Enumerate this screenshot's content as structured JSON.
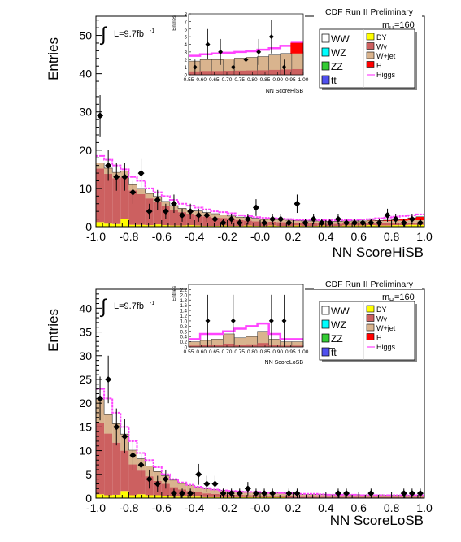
{
  "chart_data": [
    {
      "type": "bar",
      "xlabel": "NN ScoreHiSB",
      "ylabel": "Entries",
      "xlim": [
        -1.0,
        1.0
      ],
      "ylim": [
        0,
        55
      ],
      "x_ticks": [
        "-1.0",
        "-0.8",
        "-0.6",
        "-0.4",
        "-0.2",
        "-0.0",
        "0.2",
        "0.4",
        "0.6",
        "0.8",
        "1.0"
      ],
      "y_ticks": [
        "0",
        "10",
        "20",
        "30",
        "40",
        "50"
      ],
      "header": "CDF Run II Preliminary",
      "lumi": "L=9.7fb",
      "lumi_sup": "-1",
      "mass_label": "m",
      "mass_sub": "H",
      "mass_value": "=160",
      "bins": 40,
      "series": [
        {
          "name": "DY",
          "values": [
            1.2,
            0.8,
            0.7,
            2.0,
            0.5,
            0.5,
            0.4,
            0.6,
            0.4,
            0.3,
            0.3,
            0.4,
            0.3,
            0.2,
            0.2,
            0.3,
            0.2,
            0.2,
            0.3,
            0.2,
            0.2,
            0.3,
            0.2,
            0.2,
            0.3,
            0.2,
            0.2,
            0.3,
            0.2,
            0.2,
            0.3,
            0.3,
            0.3,
            0.4,
            0.3,
            0.3,
            0.4,
            0.4,
            0.5,
            0.5
          ]
        },
        {
          "name": "Wγ",
          "values": [
            14,
            13,
            12,
            11,
            9,
            8,
            7,
            6,
            5,
            4,
            3.5,
            3,
            2.8,
            2.5,
            2.2,
            2,
            1.8,
            1.5,
            1.3,
            1.2,
            1,
            1,
            1,
            0.8,
            0.7,
            0.7,
            0.7,
            0.6,
            0.6,
            0.6,
            0.6,
            0.6,
            0.6,
            0.6,
            0.6,
            0.6,
            0.6,
            0.6,
            0.6,
            0.6
          ]
        },
        {
          "name": "W+jet",
          "values": [
            1.5,
            1.5,
            1.5,
            1.5,
            1.5,
            1.5,
            1.3,
            1.3,
            1.2,
            1.2,
            1,
            1,
            1,
            1,
            1,
            0.8,
            0.8,
            0.8,
            0.8,
            0.8,
            0.7,
            0.7,
            0.7,
            0.7,
            0.6,
            0.6,
            0.6,
            0.6,
            0.6,
            0.6,
            0.6,
            0.6,
            0.6,
            0.6,
            0.6,
            0.6,
            0.6,
            0.6,
            0.6,
            0.6
          ]
        },
        {
          "name": "H",
          "values": [
            0,
            0,
            0,
            0,
            0,
            0,
            0,
            0,
            0,
            0,
            0,
            0,
            0,
            0,
            0,
            0,
            0,
            0,
            0,
            0,
            0,
            0,
            0,
            0,
            0,
            0,
            0,
            0,
            0,
            0,
            0,
            0,
            0,
            0.1,
            0.1,
            0.2,
            0.2,
            0.4,
            0.6,
            0.9
          ]
        }
      ],
      "signal_line": [
        18.5,
        17.5,
        16,
        15,
        13,
        12,
        10,
        9,
        8,
        7,
        6,
        5.5,
        5,
        4.5,
        4,
        3.8,
        3.5,
        3,
        2.8,
        2.5,
        2.3,
        2.2,
        2.1,
        2,
        1.8,
        1.8,
        1.8,
        1.7,
        1.7,
        1.7,
        1.7,
        1.8,
        1.9,
        2,
        2.2,
        2.4,
        2.6,
        2.8,
        3,
        3.2
      ],
      "points": {
        "x": [
          -0.975,
          -0.925,
          -0.875,
          -0.825,
          -0.775,
          -0.725,
          -0.675,
          -0.625,
          -0.575,
          -0.525,
          -0.475,
          -0.425,
          -0.375,
          -0.325,
          -0.275,
          -0.225,
          -0.175,
          -0.125,
          -0.075,
          -0.025,
          0.025,
          0.075,
          0.125,
          0.175,
          0.225,
          0.275,
          0.325,
          0.375,
          0.425,
          0.475,
          0.525,
          0.575,
          0.625,
          0.675,
          0.725,
          0.775,
          0.825,
          0.875,
          0.925,
          0.975
        ],
        "y": [
          29,
          16,
          13,
          13,
          9,
          14,
          4,
          7,
          4,
          6,
          3,
          4,
          3,
          3,
          2,
          1,
          2,
          1,
          2,
          5,
          1,
          2,
          2,
          1,
          6,
          1,
          2,
          1,
          1,
          2,
          1,
          1,
          1,
          1,
          1,
          3,
          2,
          1,
          2,
          1
        ],
        "err": [
          5.4,
          4,
          3.6,
          3.6,
          3,
          3.7,
          2,
          2.6,
          2,
          2.4,
          1.7,
          2,
          1.7,
          1.7,
          1.4,
          1,
          1.4,
          1,
          1.4,
          2.2,
          1,
          1.4,
          1.4,
          1,
          2.4,
          1,
          1.4,
          1,
          1,
          1.4,
          1,
          1,
          1,
          1,
          1,
          1.7,
          1.4,
          1,
          1.4,
          1
        ]
      },
      "legend_left": [
        "WW",
        "WZ",
        "ZZ",
        "t̅t"
      ],
      "legend_right": [
        "DY",
        "Wγ",
        "W+jet",
        "H",
        "Higgs"
      ],
      "inset": {
        "xlabel": "NN ScoreHiSB",
        "ylabel": "Entries",
        "xlim": [
          0.55,
          1.0
        ],
        "ylim": [
          0,
          8
        ],
        "x_ticks": [
          "0.55",
          "0.60",
          "0.65",
          "0.70",
          "0.75",
          "0.80",
          "0.85",
          "0.90",
          "0.95",
          "1.00"
        ],
        "y_ticks": [
          "0",
          "1",
          "2",
          "3",
          "4",
          "5",
          "6",
          "7",
          "8"
        ],
        "stack": [
          1.8,
          2.0,
          2.0,
          2.1,
          2.2,
          2.3,
          2.4,
          2.6,
          2.8,
          3.0
        ],
        "signal": [
          2.5,
          2.7,
          2.8,
          2.9,
          3.0,
          3.1,
          3.3,
          3.5,
          3.8,
          4.2
        ],
        "points": {
          "x": [
            0.575,
            0.625,
            0.675,
            0.725,
            0.775,
            0.825,
            0.875,
            0.925
          ],
          "y": [
            1,
            4,
            3,
            1,
            2,
            3,
            5,
            1
          ],
          "err": [
            1,
            2,
            1.7,
            1,
            1.4,
            1.7,
            2.2,
            1
          ]
        }
      }
    },
    {
      "type": "bar",
      "xlabel": "NN ScoreLoSB",
      "ylabel": "Entries",
      "xlim": [
        -1.0,
        1.0
      ],
      "ylim": [
        0,
        44
      ],
      "x_ticks": [
        "-1.0",
        "-0.8",
        "-0.6",
        "-0.4",
        "-0.2",
        "-0.0",
        "0.2",
        "0.4",
        "0.6",
        "0.8",
        "1.0"
      ],
      "y_ticks": [
        "0",
        "5",
        "10",
        "15",
        "20",
        "25",
        "30",
        "35",
        "40"
      ],
      "header": "CDF Run II Preliminary",
      "lumi": "L=9.7fb",
      "lumi_sup": "-1",
      "mass_label": "m",
      "mass_sub": "H",
      "mass_value": "=160",
      "bins": 40,
      "series": [
        {
          "name": "DY",
          "values": [
            0.8,
            0.6,
            0.7,
            1.5,
            0.6,
            0.8,
            0.6,
            0.6,
            0.5,
            0.3,
            0.3,
            0.3,
            0.3,
            0.2,
            0.2,
            0.2,
            0.2,
            0.2,
            0.2,
            0.2,
            0.2,
            0.2,
            0.2,
            0.1,
            0.1,
            0.1,
            0.1,
            0.1,
            0.1,
            0.1,
            0.1,
            0.1,
            0.1,
            0.1,
            0.1,
            0.1,
            0.1,
            0.1,
            0.1,
            0.1
          ]
        },
        {
          "name": "Wγ",
          "values": [
            15,
            13,
            11,
            8.5,
            6.5,
            5,
            4,
            3,
            2.5,
            2,
            1.5,
            1.2,
            1,
            0.8,
            0.7,
            0.6,
            0.5,
            0.5,
            0.4,
            0.4,
            0.3,
            0.3,
            0.3,
            0.3,
            0.2,
            0.2,
            0.2,
            0.2,
            0.2,
            0.2,
            0.2,
            0.2,
            0.2,
            0.2,
            0.2,
            0.2,
            0.2,
            0.2,
            0.2,
            0.2
          ]
        },
        {
          "name": "W+jet",
          "values": [
            5,
            4,
            4,
            3.5,
            3,
            2.5,
            2.2,
            2,
            1.7,
            1.5,
            1.3,
            1.2,
            1,
            1,
            0.9,
            0.8,
            0.8,
            0.7,
            0.7,
            0.7,
            0.6,
            0.6,
            0.6,
            0.5,
            0.5,
            0.5,
            0.5,
            0.5,
            0.4,
            0.4,
            0.4,
            0.4,
            0.4,
            0.4,
            0.4,
            0.3,
            0.3,
            0.3,
            0.3,
            0.3
          ]
        },
        {
          "name": "H",
          "values": [
            0,
            0,
            0,
            0,
            0,
            0,
            0,
            0,
            0,
            0,
            0,
            0,
            0,
            0,
            0,
            0,
            0,
            0,
            0,
            0,
            0,
            0,
            0,
            0,
            0,
            0,
            0,
            0,
            0,
            0,
            0,
            0,
            0,
            0,
            0,
            0,
            0,
            0,
            0,
            0
          ]
        }
      ],
      "signal_line": [
        23,
        21,
        18,
        15,
        12,
        9.5,
        8,
        6.5,
        5,
        4,
        3.3,
        2.8,
        2.4,
        2.1,
        1.8,
        1.6,
        1.5,
        1.4,
        1.3,
        1.3,
        1.2,
        1.1,
        1.1,
        1,
        0.9,
        0.9,
        0.9,
        0.8,
        0.7,
        0.7,
        0.7,
        0.7,
        0.6,
        0.6,
        0.6,
        0.6,
        0.6,
        0.6,
        0.6,
        0.6
      ],
      "points": {
        "x": [
          -0.975,
          -0.925,
          -0.875,
          -0.825,
          -0.775,
          -0.725,
          -0.675,
          -0.625,
          -0.575,
          -0.525,
          -0.475,
          -0.425,
          -0.375,
          -0.325,
          -0.275,
          -0.225,
          -0.175,
          -0.125,
          -0.075,
          -0.025,
          0.025,
          0.075,
          0.125,
          0.175,
          0.225,
          0.275,
          0.325,
          0.375,
          0.425,
          0.475,
          0.525,
          0.575,
          0.625,
          0.675,
          0.725,
          0.775,
          0.825,
          0.875,
          0.925,
          0.975
        ],
        "y": [
          21,
          25,
          15,
          13,
          9,
          7,
          4,
          3,
          4,
          1,
          1,
          1,
          5,
          3,
          3,
          1,
          1,
          1,
          2,
          1,
          1,
          1,
          0,
          1,
          1,
          0,
          0,
          0,
          0,
          1,
          1,
          0,
          0,
          1,
          0,
          0,
          0,
          1,
          1,
          1
        ],
        "err": [
          4.6,
          5,
          3.9,
          3.6,
          3,
          2.6,
          2,
          1.7,
          2,
          1,
          1,
          1,
          2.2,
          1.7,
          1.7,
          1,
          1,
          1,
          1.4,
          1,
          1,
          1,
          0,
          1,
          1,
          0,
          0,
          0,
          0,
          1,
          1,
          0,
          0,
          1,
          0,
          0,
          0,
          1,
          1,
          1
        ]
      },
      "legend_left": [
        "WW",
        "WZ",
        "ZZ",
        "t̅t"
      ],
      "legend_right": [
        "DY",
        "Wγ",
        "W+jet",
        "H",
        "Higgs"
      ],
      "inset": {
        "xlabel": "NN ScoreLoSB",
        "ylabel": "Entries",
        "xlim": [
          0.55,
          1.0
        ],
        "ylim": [
          0,
          2.4
        ],
        "x_ticks": [
          "0.55",
          "0.60",
          "0.65",
          "0.70",
          "0.75",
          "0.80",
          "0.85",
          "0.90",
          "0.95",
          "1.00"
        ],
        "y_ticks": [
          "0",
          "0.2",
          "0.4",
          "0.6",
          "0.8",
          "1.0",
          "1.2",
          "1.4",
          "1.6",
          "1.8",
          "2.0",
          "2.2"
        ],
        "stack": [
          0.2,
          0.25,
          0.3,
          0.5,
          0.35,
          0.4,
          0.6,
          0.3,
          0.2,
          0.2
        ],
        "signal": [
          0.3,
          0.5,
          0.5,
          0.6,
          0.7,
          0.8,
          0.9,
          0.5,
          0.3,
          0.3
        ],
        "points": {
          "x": [
            0.575,
            0.625,
            0.675,
            0.725,
            0.775,
            0.825,
            0.875,
            0.925
          ],
          "y": [
            0,
            1,
            0,
            1,
            0,
            0,
            1,
            1
          ],
          "err": [
            0,
            1,
            0,
            1,
            0,
            0,
            1,
            1
          ]
        }
      }
    }
  ],
  "colors": {
    "DY": "#ffff00",
    "Wγ": "#cc6060",
    "W+jet": "#d9b48e",
    "H": "#ff0000",
    "WW": "#ffffff",
    "WZ": "#00ffff",
    "ZZ": "#33cc33",
    "t̅t": "#5050ee",
    "Higgs": "#ff44ff"
  }
}
